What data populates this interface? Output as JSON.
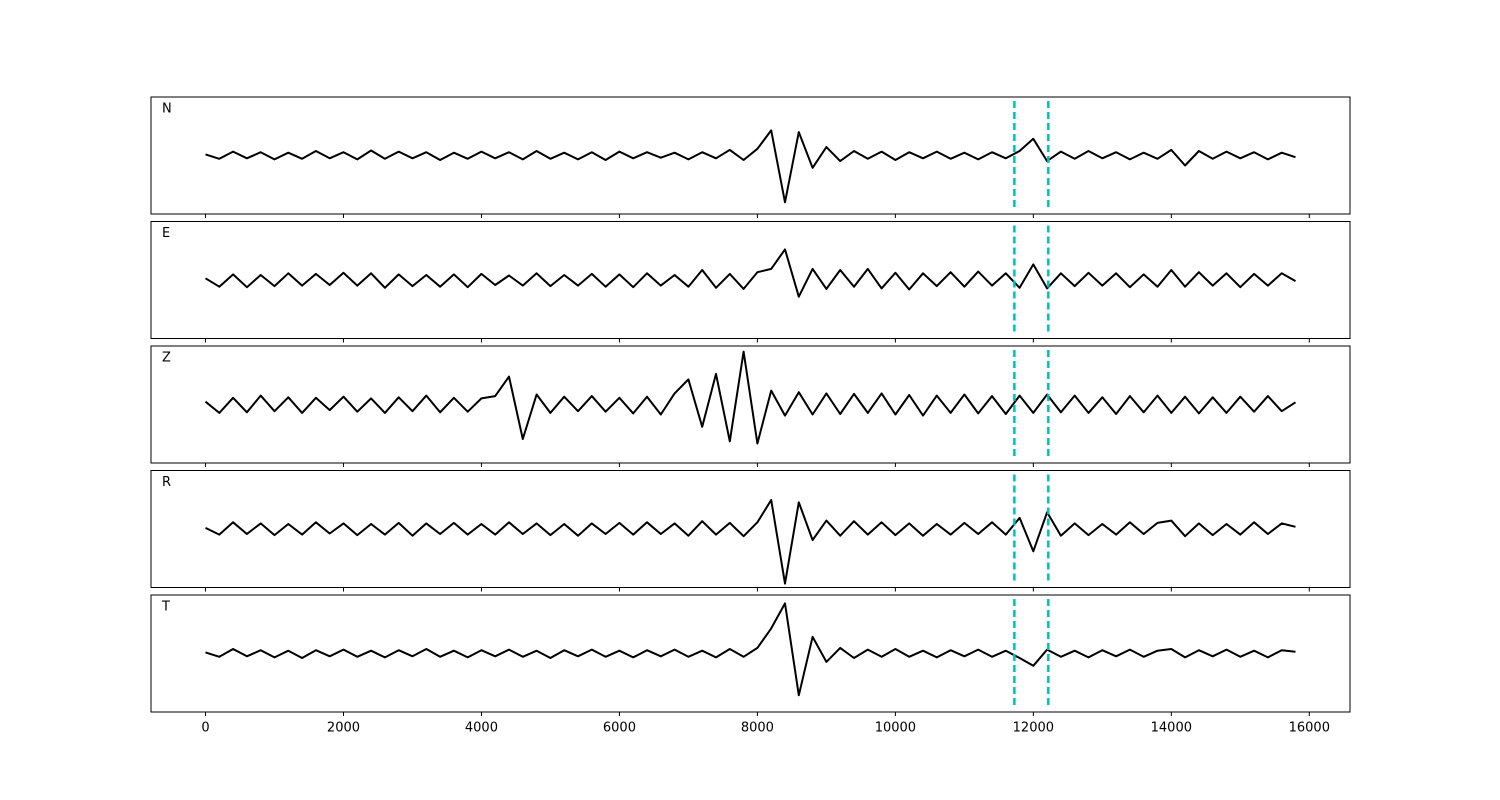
{
  "chart_data": {
    "type": "line",
    "subplots": true,
    "x": [
      0,
      200,
      400,
      600,
      800,
      1000,
      1200,
      1400,
      1600,
      1800,
      2000,
      2200,
      2400,
      2600,
      2800,
      3000,
      3200,
      3400,
      3600,
      3800,
      4000,
      4200,
      4400,
      4600,
      4800,
      5000,
      5200,
      5400,
      5600,
      5800,
      6000,
      6200,
      6400,
      6600,
      6800,
      7000,
      7200,
      7400,
      7600,
      7800,
      8000,
      8200,
      8400,
      8600,
      8800,
      9000,
      9200,
      9400,
      9600,
      9800,
      10000,
      10200,
      10400,
      10600,
      10800,
      11000,
      11200,
      11400,
      11600,
      11800,
      12000,
      12200,
      12400,
      12600,
      12800,
      13000,
      13200,
      13400,
      13600,
      13800,
      14000,
      14200,
      14400,
      14600,
      14800,
      15000,
      15200,
      15400,
      15600,
      15800
    ],
    "series": [
      {
        "name": "N",
        "color": "#000000",
        "values": [
          0.02,
          -0.06,
          0.07,
          -0.05,
          0.06,
          -0.07,
          0.05,
          -0.06,
          0.08,
          -0.05,
          0.06,
          -0.07,
          0.09,
          -0.06,
          0.07,
          -0.05,
          0.06,
          -0.08,
          0.05,
          -0.06,
          0.07,
          -0.05,
          0.06,
          -0.07,
          0.08,
          -0.06,
          0.05,
          -0.07,
          0.06,
          -0.08,
          0.07,
          -0.05,
          0.06,
          -0.04,
          0.05,
          -0.07,
          0.06,
          -0.05,
          0.1,
          -0.08,
          0.12,
          0.45,
          -0.84,
          0.42,
          -0.22,
          0.15,
          -0.1,
          0.08,
          -0.06,
          0.07,
          -0.08,
          0.06,
          -0.05,
          0.07,
          -0.06,
          0.05,
          -0.07,
          0.06,
          -0.05,
          0.08,
          0.3,
          -0.1,
          0.07,
          -0.06,
          0.08,
          -0.05,
          0.06,
          -0.07,
          0.05,
          -0.06,
          0.1,
          -0.18,
          0.08,
          -0.06,
          0.07,
          -0.05,
          0.06,
          -0.07,
          0.05,
          -0.03
        ]
      },
      {
        "name": "E",
        "color": "#000000",
        "values": [
          0.03,
          -0.12,
          0.1,
          -0.13,
          0.09,
          -0.11,
          0.12,
          -0.1,
          0.11,
          -0.09,
          0.13,
          -0.1,
          0.12,
          -0.14,
          0.1,
          -0.11,
          0.09,
          -0.12,
          0.1,
          -0.13,
          0.11,
          -0.09,
          0.08,
          -0.1,
          0.12,
          -0.11,
          0.09,
          -0.1,
          0.11,
          -0.12,
          0.1,
          -0.13,
          0.12,
          -0.1,
          0.09,
          -0.12,
          0.18,
          -0.14,
          0.11,
          -0.16,
          0.14,
          0.2,
          0.55,
          -0.3,
          0.2,
          -0.16,
          0.18,
          -0.12,
          0.2,
          -0.15,
          0.13,
          -0.17,
          0.12,
          -0.11,
          0.14,
          -0.12,
          0.15,
          -0.1,
          0.12,
          -0.14,
          0.28,
          -0.15,
          0.12,
          -0.11,
          0.13,
          -0.1,
          0.12,
          -0.13,
          0.1,
          -0.12,
          0.18,
          -0.12,
          0.14,
          -0.1,
          0.12,
          -0.13,
          0.11,
          -0.1,
          0.12,
          -0.02
        ]
      },
      {
        "name": "Z",
        "color": "#000000",
        "values": [
          0.05,
          -0.15,
          0.12,
          -0.14,
          0.16,
          -0.12,
          0.13,
          -0.15,
          0.12,
          -0.1,
          0.14,
          -0.13,
          0.11,
          -0.15,
          0.13,
          -0.12,
          0.16,
          -0.14,
          0.12,
          -0.13,
          0.11,
          0.15,
          0.5,
          -0.62,
          0.18,
          -0.15,
          0.14,
          -0.12,
          0.15,
          -0.13,
          0.12,
          -0.16,
          0.14,
          -0.18,
          0.2,
          0.45,
          -0.4,
          0.55,
          -0.66,
          0.95,
          -0.7,
          0.25,
          -0.2,
          0.22,
          -0.18,
          0.2,
          -0.17,
          0.19,
          -0.15,
          0.2,
          -0.18,
          0.17,
          -0.2,
          0.16,
          -0.15,
          0.18,
          -0.16,
          0.15,
          -0.17,
          0.16,
          -0.15,
          0.18,
          -0.14,
          0.16,
          -0.15,
          0.13,
          -0.17,
          0.15,
          -0.14,
          0.16,
          -0.15,
          0.14,
          -0.16,
          0.13,
          -0.15,
          0.14,
          -0.13,
          0.15,
          -0.12,
          0.04
        ]
      },
      {
        "name": "R",
        "color": "#000000",
        "values": [
          0.02,
          -0.1,
          0.12,
          -0.09,
          0.1,
          -0.11,
          0.09,
          -0.1,
          0.12,
          -0.08,
          0.1,
          -0.11,
          0.09,
          -0.1,
          0.11,
          -0.12,
          0.1,
          -0.09,
          0.11,
          -0.1,
          0.09,
          -0.1,
          0.12,
          -0.09,
          0.1,
          -0.11,
          0.09,
          -0.12,
          0.1,
          -0.09,
          0.11,
          -0.1,
          0.12,
          -0.09,
          0.1,
          -0.12,
          0.14,
          -0.1,
          0.11,
          -0.13,
          0.12,
          0.52,
          -0.98,
          0.48,
          -0.2,
          0.15,
          -0.12,
          0.14,
          -0.1,
          0.12,
          -0.11,
          0.1,
          -0.12,
          0.09,
          -0.1,
          0.11,
          -0.09,
          0.12,
          -0.1,
          0.2,
          -0.4,
          0.3,
          -0.12,
          0.1,
          -0.11,
          0.09,
          -0.1,
          0.12,
          -0.09,
          0.11,
          0.15,
          -0.13,
          0.1,
          -0.11,
          0.09,
          -0.1,
          0.12,
          -0.09,
          0.1,
          0.04
        ]
      },
      {
        "name": "T",
        "color": "#000000",
        "values": [
          0.02,
          -0.06,
          0.08,
          -0.05,
          0.06,
          -0.07,
          0.05,
          -0.08,
          0.06,
          -0.05,
          0.07,
          -0.06,
          0.05,
          -0.07,
          0.06,
          -0.05,
          0.08,
          -0.06,
          0.05,
          -0.07,
          0.06,
          -0.05,
          0.07,
          -0.06,
          0.05,
          -0.08,
          0.06,
          -0.05,
          0.07,
          -0.06,
          0.05,
          -0.07,
          0.06,
          -0.05,
          0.07,
          -0.06,
          0.05,
          -0.07,
          0.08,
          -0.06,
          0.1,
          0.45,
          0.9,
          -0.75,
          0.3,
          -0.15,
          0.1,
          -0.08,
          0.07,
          -0.06,
          0.08,
          -0.06,
          0.05,
          -0.07,
          0.06,
          -0.05,
          0.07,
          -0.06,
          0.05,
          -0.08,
          -0.22,
          0.07,
          -0.06,
          0.05,
          -0.07,
          0.06,
          -0.05,
          0.07,
          -0.06,
          0.05,
          0.08,
          -0.07,
          0.06,
          -0.05,
          0.07,
          -0.06,
          0.05,
          -0.07,
          0.06,
          0.03
        ]
      }
    ],
    "xlim": [
      -790,
      16590
    ],
    "ylim": [
      -1.05,
      1.05
    ],
    "xticks": [
      0,
      2000,
      4000,
      6000,
      8000,
      10000,
      12000,
      14000,
      16000
    ],
    "vlines": [
      11725,
      12217
    ],
    "vline_color": "#00bfbf",
    "vline_style": "dashed"
  }
}
